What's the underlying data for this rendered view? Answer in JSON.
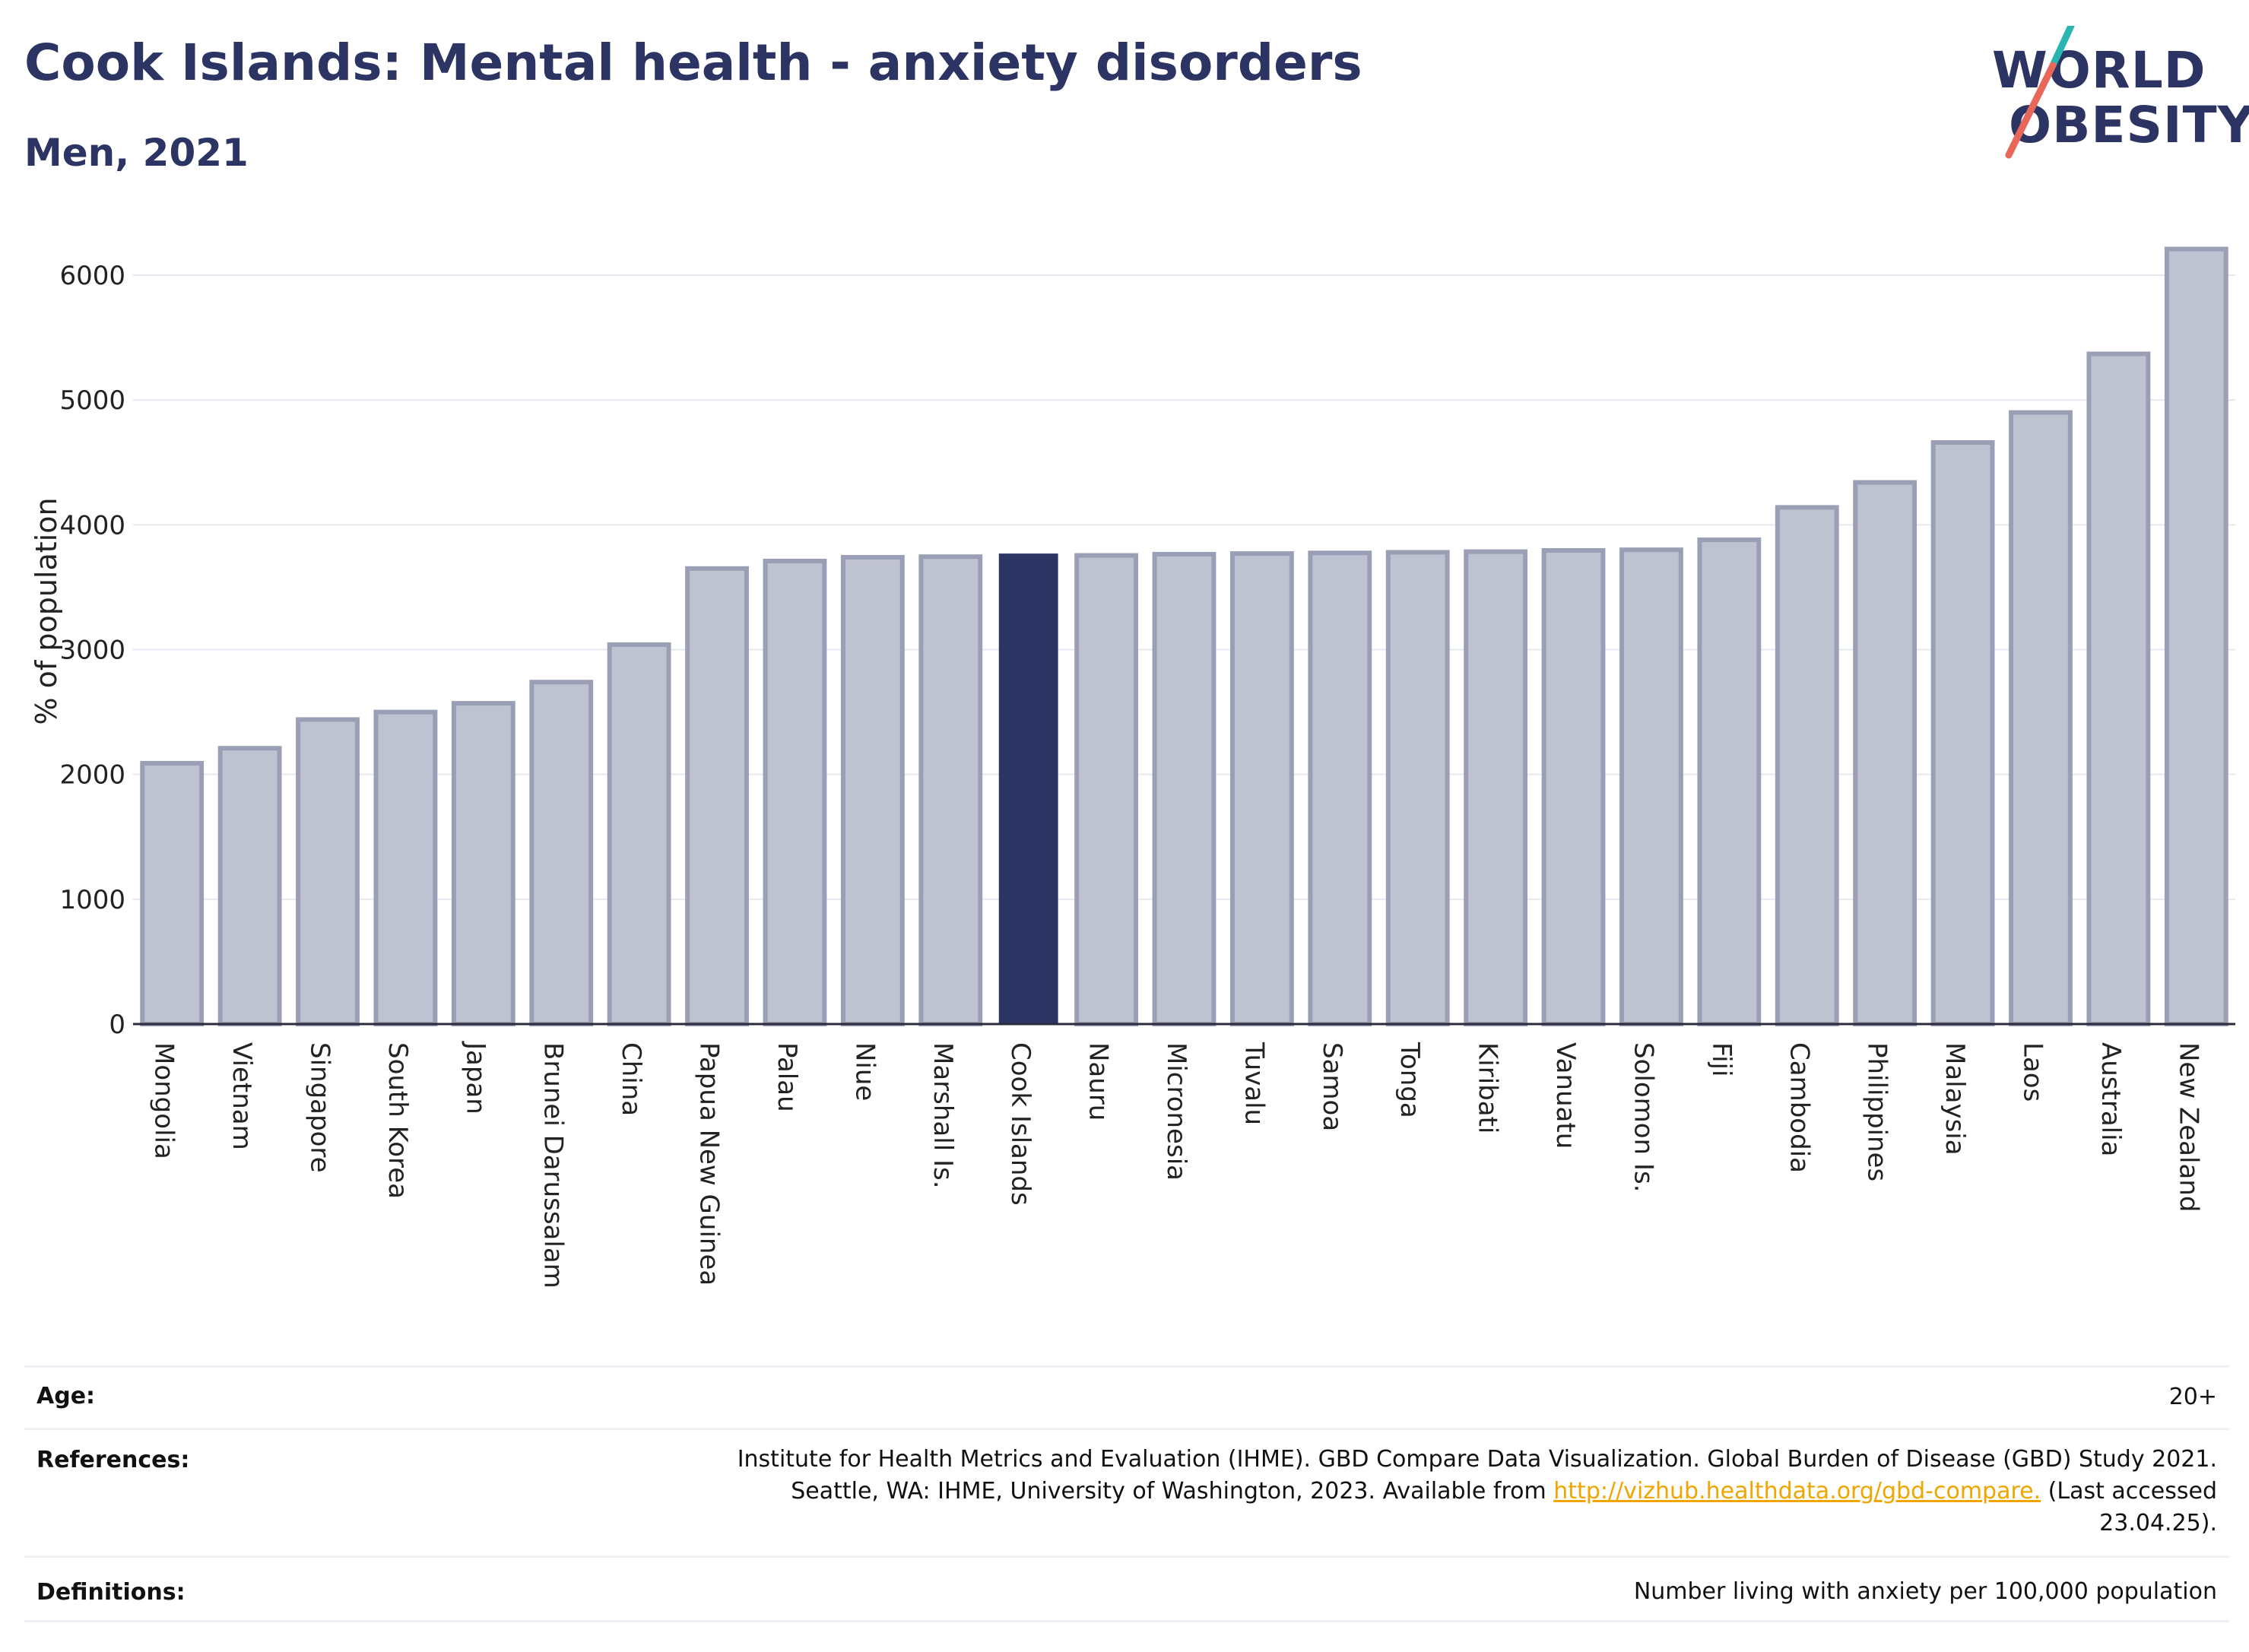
{
  "title": "Cook Islands: Mental health - anxiety disorders",
  "subtitle": "Men, 2021",
  "logo": {
    "line1": "WORLD",
    "line2": "OBESITY",
    "accent_teal": "#2bb5b0",
    "accent_red": "#e8665a"
  },
  "colors": {
    "highlight": "#2b3462",
    "bar_fill": "#bfc2d0",
    "bar_stroke": "#9a9fb6",
    "grid": "#e6e8ef"
  },
  "chart_data": {
    "type": "bar",
    "ylabel": "% of population",
    "ylim": [
      0,
      6250
    ],
    "yticks": [
      0,
      1000,
      2000,
      3000,
      4000,
      5000,
      6000
    ],
    "highlight": "Cook Islands",
    "categories": [
      "Mongolia",
      "Vietnam",
      "Singapore",
      "South Korea",
      "Japan",
      "Brunei Darussalam",
      "China",
      "Papua New Guinea",
      "Palau",
      "Niue",
      "Marshall Is.",
      "Cook Islands",
      "Nauru",
      "Micronesia",
      "Tuvalu",
      "Samoa",
      "Tonga",
      "Kiribati",
      "Vanuatu",
      "Solomon Is.",
      "Fiji",
      "Cambodia",
      "Philippines",
      "Malaysia",
      "Laos",
      "Australia",
      "New Zealand"
    ],
    "values": [
      2090,
      2210,
      2440,
      2500,
      2570,
      2740,
      3040,
      3650,
      3710,
      3740,
      3745,
      3770,
      3755,
      3765,
      3770,
      3775,
      3780,
      3785,
      3795,
      3800,
      3880,
      4140,
      4340,
      4660,
      4900,
      5370,
      6210
    ]
  },
  "meta": {
    "age_label": "Age:",
    "age_value": "20+",
    "references_label": "References:",
    "references_line1": "Institute for Health Metrics and Evaluation (IHME). GBD Compare Data Visualization. Global Burden of Disease (GBD) Study 2021.",
    "references_line2_pre": "Seattle, WA: IHME, University of Washington, 2023. Available from ",
    "references_link": "http://vizhub.healthdata.org/gbd-compare.",
    "references_line2_post": " (Last accessed",
    "references_line3": "23.04.25).",
    "definitions_label": "Definitions:",
    "definitions_value": "Number living with anxiety per 100,000 population"
  }
}
